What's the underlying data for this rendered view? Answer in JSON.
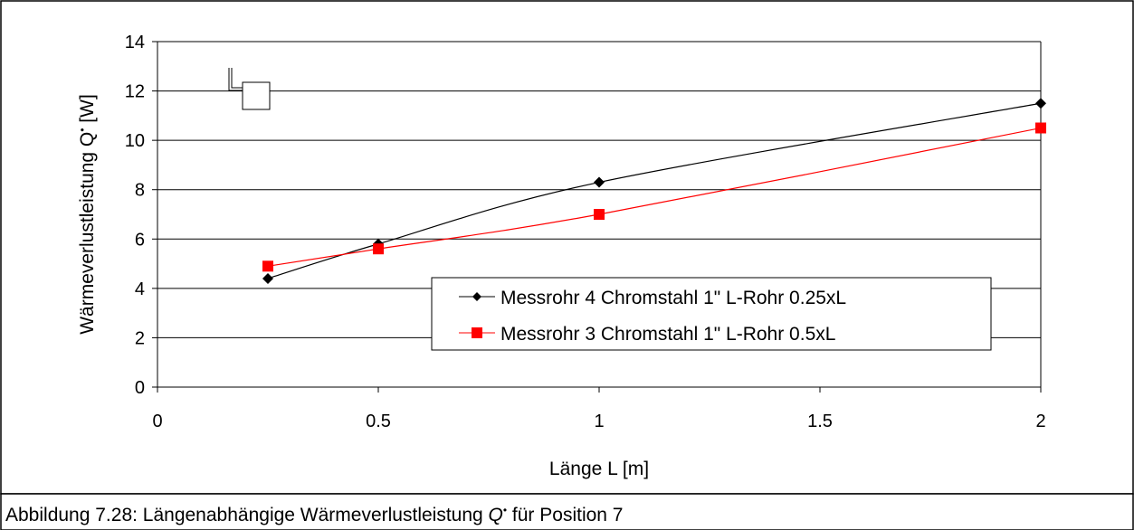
{
  "caption": {
    "prefix": "Abbildung 7.28: Längenabhängige Wärmeverlustleistung ",
    "symbol": "Q",
    "dot": "•",
    "suffix": " für Position 7"
  },
  "chart_data": {
    "type": "line",
    "x_tick_labels": [
      "0",
      "0.5",
      "1",
      "1.5",
      "2"
    ],
    "y_tick_labels": [
      "0",
      "2",
      "4",
      "6",
      "8",
      "10",
      "12",
      "14"
    ],
    "ylim": [
      0,
      14
    ],
    "y_ticks": [
      0,
      2,
      4,
      6,
      8,
      10,
      12,
      14
    ],
    "grid": "horizontal",
    "legend_placement": "bottom-right",
    "xlabel": "Länge L [m]",
    "ylabel": "Wärmeverlustleistung Q [W]",
    "ylabel_parts": {
      "before": "Wärmeverlustleistung Q",
      "dot": "•",
      "after": " [W]"
    },
    "series": [
      {
        "name": "Messrohr 4 Chromstahl 1\" L-Rohr 0.25xL",
        "color": "#000000",
        "marker": "diamond",
        "x": [
          0.25,
          0.5,
          1,
          2
        ],
        "values": [
          4.4,
          5.8,
          8.3,
          11.5
        ]
      },
      {
        "name": "Messrohr 3 Chromstahl 1\" L-Rohr 0.5xL",
        "color": "#ff0000",
        "marker": "square",
        "x": [
          0.25,
          0.5,
          1,
          2
        ],
        "values": [
          4.9,
          5.6,
          7.0,
          10.5
        ]
      }
    ]
  }
}
